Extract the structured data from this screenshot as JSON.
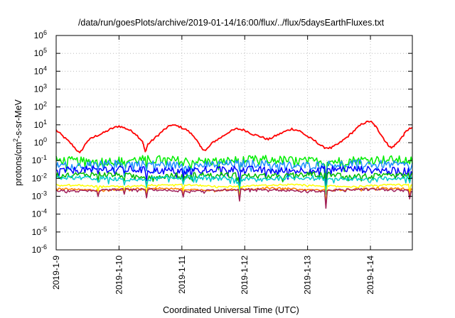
{
  "chart_data": {
    "type": "line",
    "title": "/data/run/goesPlots/archive/2019-01-14/16:00/flux/../flux/5daysEarthFluxes.txt",
    "xlabel": "Coordinated Universal Time (UTC)",
    "ylabel": {
      "base": "protons/cm",
      "sup": "2",
      "rest": "-s-sr-MeV"
    },
    "y_scale": "log",
    "ylim": [
      1e-06,
      1000000.0
    ],
    "y_ticks": [
      {
        "exp": "-6",
        "value": 1e-06
      },
      {
        "exp": "-5",
        "value": 1e-05
      },
      {
        "exp": "-4",
        "value": 0.0001
      },
      {
        "exp": "-3",
        "value": 0.001
      },
      {
        "exp": "-2",
        "value": 0.01
      },
      {
        "exp": "-1",
        "value": 0.1
      },
      {
        "exp": "0",
        "value": 1
      },
      {
        "exp": "1",
        "value": 10
      },
      {
        "exp": "2",
        "value": 100
      },
      {
        "exp": "3",
        "value": 1000.0
      },
      {
        "exp": "4",
        "value": 10000.0
      },
      {
        "exp": "5",
        "value": 100000.0
      },
      {
        "exp": "6",
        "value": 1000000.0
      }
    ],
    "y_tick_base": "10",
    "xlim": [
      "2019-01-09T00:00",
      "2019-01-14T16:00"
    ],
    "x_ticks": [
      {
        "label": "2019-1-9",
        "t": "2019-01-09T00:00"
      },
      {
        "label": "2019-1-10",
        "t": "2019-01-10T00:00"
      },
      {
        "label": "2019-1-11",
        "t": "2019-01-11T00:00"
      },
      {
        "label": "2019-1-12",
        "t": "2019-01-12T00:00"
      },
      {
        "label": "2019-1-13",
        "t": "2019-01-13T00:00"
      },
      {
        "label": "2019-1-14",
        "t": "2019-01-14T00:00"
      }
    ],
    "grid": true,
    "series": [
      {
        "color": "#ff0000",
        "points": [
          [
            "2019-01-09T00:00",
            5
          ],
          [
            "2019-01-09T03:00",
            2.0
          ],
          [
            "2019-01-09T06:00",
            0.8
          ],
          [
            "2019-01-09T09:00",
            0.25
          ],
          [
            "2019-01-09T12:00",
            1.3
          ],
          [
            "2019-01-09T15:00",
            2.3
          ],
          [
            "2019-01-09T18:00",
            3.5
          ],
          [
            "2019-01-09T21:00",
            6
          ],
          [
            "2019-01-10T00:00",
            8.5
          ],
          [
            "2019-01-10T03:00",
            6
          ],
          [
            "2019-01-10T06:00",
            3.5
          ],
          [
            "2019-01-10T09:00",
            1.2
          ],
          [
            "2019-01-10T10:00",
            0.3
          ],
          [
            "2019-01-10T11:00",
            0.8
          ],
          [
            "2019-01-10T14:00",
            2.0
          ],
          [
            "2019-01-10T17:00",
            5
          ],
          [
            "2019-01-10T20:00",
            10
          ],
          [
            "2019-01-10T23:00",
            8
          ],
          [
            "2019-01-11T02:00",
            5
          ],
          [
            "2019-01-11T05:00",
            2
          ],
          [
            "2019-01-11T07:00",
            0.6
          ],
          [
            "2019-01-11T09:00",
            0.35
          ],
          [
            "2019-01-11T12:00",
            1.1
          ],
          [
            "2019-01-11T15:00",
            2.0
          ],
          [
            "2019-01-11T18:00",
            4
          ],
          [
            "2019-01-11T21:00",
            6
          ],
          [
            "2019-01-12T00:00",
            5
          ],
          [
            "2019-01-12T03:00",
            3
          ],
          [
            "2019-01-12T06:00",
            2.2
          ],
          [
            "2019-01-12T09:00",
            1.5
          ],
          [
            "2019-01-12T12:00",
            2.5
          ],
          [
            "2019-01-12T15:00",
            4
          ],
          [
            "2019-01-12T18:00",
            6
          ],
          [
            "2019-01-12T21:00",
            4.5
          ],
          [
            "2019-01-13T00:00",
            2.2
          ],
          [
            "2019-01-13T03:00",
            1.2
          ],
          [
            "2019-01-13T06:00",
            0.55
          ],
          [
            "2019-01-13T09:00",
            0.5
          ],
          [
            "2019-01-13T12:00",
            0.9
          ],
          [
            "2019-01-13T15:00",
            2.0
          ],
          [
            "2019-01-13T18:00",
            5
          ],
          [
            "2019-01-13T21:00",
            12
          ],
          [
            "2019-01-14T00:00",
            16
          ],
          [
            "2019-01-14T02:00",
            8
          ],
          [
            "2019-01-14T04:00",
            3
          ],
          [
            "2019-01-14T06:00",
            1
          ],
          [
            "2019-01-14T08:00",
            0.5
          ],
          [
            "2019-01-14T10:00",
            0.9
          ],
          [
            "2019-01-14T12:00",
            2
          ],
          [
            "2019-01-14T14:00",
            5
          ],
          [
            "2019-01-14T16:00",
            7
          ]
        ]
      },
      {
        "color": "#00ee00",
        "base": 0.1,
        "jitter": 0.25
      },
      {
        "color": "#1e90ff",
        "base": 0.06,
        "jitter": 0.22
      },
      {
        "color": "#0000ff",
        "base": 0.03,
        "jitter": 0.2
      },
      {
        "color": "#00bb00",
        "base": 0.015,
        "jitter": 0.15
      },
      {
        "color": "#00cccc",
        "base": 0.01,
        "jitter": 0.12
      },
      {
        "color": "#ffff00",
        "base": 0.004,
        "jitter": 0.04
      },
      {
        "color": "#ff7f00",
        "base": 0.0025,
        "jitter": 0.05
      },
      {
        "color": "#a0205a",
        "base": 0.0022,
        "jitter": 0.06
      }
    ],
    "dips": [
      {
        "t": "2019-01-09T16:00",
        "factor": 0.5
      },
      {
        "t": "2019-01-10T02:00",
        "factor": 0.55
      },
      {
        "t": "2019-01-10T10:30",
        "factor": 0.35
      },
      {
        "t": "2019-01-11T00:30",
        "factor": 0.5
      },
      {
        "t": "2019-01-11T22:00",
        "factor": 0.25
      },
      {
        "t": "2019-01-13T07:00",
        "factor": 0.1
      },
      {
        "t": "2019-01-14T15:00",
        "factor": 0.4
      }
    ]
  }
}
